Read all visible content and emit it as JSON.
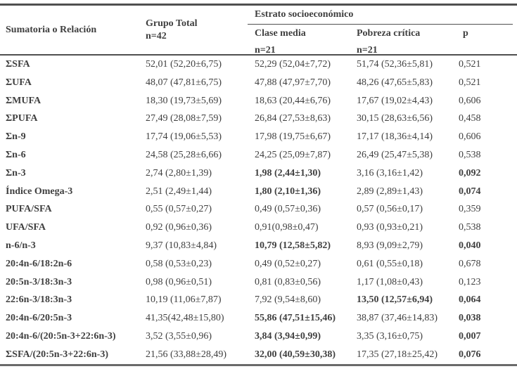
{
  "colors": {
    "background": "#ffffff",
    "text": "#3f3f3f",
    "border_heavy": "#4f4f4f",
    "border_light": "#6a6a6a"
  },
  "header": {
    "col1": "Sumatoria o Relación",
    "grupo_total_line1": "Grupo Total",
    "grupo_total_line2": "n=42",
    "estrato_span": "Estrato socioeconómico",
    "clase_media_line1": "Clase media",
    "clase_media_line2": "n=21",
    "pobreza_line1": "Pobreza crítica",
    "pobreza_line2": "n=21",
    "p": "p"
  },
  "rows": [
    {
      "label": "ΣSFA",
      "grupo_total": "52,01 (52,20±6,75)",
      "clase_media": "52,29 (52,04±7,72)",
      "pobreza_critica": "51,74 (52,36±5,81)",
      "p": "0,521",
      "bold_clase_media": false,
      "bold_pobreza": false,
      "bold_p": false
    },
    {
      "label": "ΣUFA",
      "grupo_total": "48,07 (47,81±6,75)",
      "clase_media": "47,88 (47,97±7,70)",
      "pobreza_critica": "48,26 (47,65±5,83)",
      "p": "0,521",
      "bold_clase_media": false,
      "bold_pobreza": false,
      "bold_p": false
    },
    {
      "label": "ΣMUFA",
      "grupo_total": "18,30 (19,73±5,69)",
      "clase_media": "18,63 (20,44±6,76)",
      "pobreza_critica": "17,67 (19,02±4,43)",
      "p": "0,606",
      "bold_clase_media": false,
      "bold_pobreza": false,
      "bold_p": false
    },
    {
      "label": "ΣPUFA",
      "grupo_total": "27,49 (28,08±7,59)",
      "clase_media": "26,84 (27,53±8,63)",
      "pobreza_critica": "30,15 (28,63±6,56)",
      "p": "0,458",
      "bold_clase_media": false,
      "bold_pobreza": false,
      "bold_p": false
    },
    {
      "label": "Σn-9",
      "grupo_total": "17,74 (19,06±5,53)",
      "clase_media": "17,98 (19,75±6,67)",
      "pobreza_critica": "17,17 (18,36±4,14)",
      "p": "0,606",
      "bold_clase_media": false,
      "bold_pobreza": false,
      "bold_p": false
    },
    {
      "label": "Σn-6",
      "grupo_total": "24,58 (25,28±6,66)",
      "clase_media": "24,25 (25,09±7,87)",
      "pobreza_critica": "26,49 (25,47±5,38)",
      "p": "0,538",
      "bold_clase_media": false,
      "bold_pobreza": false,
      "bold_p": false
    },
    {
      "label": "Σn-3",
      "grupo_total": "2,74 (2,80±1,39)",
      "clase_media": "1,98 (2,44±1,30)",
      "pobreza_critica": "3,16 (3,16±1,42)",
      "p": "0,092",
      "bold_clase_media": true,
      "bold_pobreza": false,
      "bold_p": true
    },
    {
      "label": "Índice Omega-3",
      "grupo_total": "2,51 (2,49±1,44)",
      "clase_media": "1,80 (2,10±1,36)",
      "pobreza_critica": "2,89 (2,89±1,43)",
      "p": "0,074",
      "bold_clase_media": true,
      "bold_pobreza": false,
      "bold_p": true
    },
    {
      "label": "PUFA/SFA",
      "grupo_total": "0,55 (0,57±0,27)",
      "clase_media": "0,49 (0,57±0,36)",
      "pobreza_critica": "0,57 (0,56±0,17)",
      "p": "0,359",
      "bold_clase_media": false,
      "bold_pobreza": false,
      "bold_p": false
    },
    {
      "label": "UFA/SFA",
      "grupo_total": "0,92 (0,96±0,36)",
      "clase_media": "0,91(0,98±0,47)",
      "pobreza_critica": "0,93 (0,93±0,21)",
      "p": "0,538",
      "bold_clase_media": false,
      "bold_pobreza": false,
      "bold_p": false
    },
    {
      "label": "n-6/n-3",
      "grupo_total": "9,37 (10,83±4,84)",
      "clase_media": "10,79 (12,58±5,82)",
      "pobreza_critica": "8,93 (9,09±2,79)",
      "p": "0,040",
      "bold_clase_media": true,
      "bold_pobreza": false,
      "bold_p": true
    },
    {
      "label": "20:4n-6/18:2n-6",
      "grupo_total": "0,58 (0,53±0,23)",
      "clase_media": "0,49 (0,52±0,27)",
      "pobreza_critica": "0,61 (0,55±0,18)",
      "p": "0,678",
      "bold_clase_media": false,
      "bold_pobreza": false,
      "bold_p": false
    },
    {
      "label": "20:5n-3/18:3n-3",
      "grupo_total": "0,98 (0,96±0,51)",
      "clase_media": "0,81 (0,83±0,56)",
      "pobreza_critica": "1,17 (1,08±0,43)",
      "p": "0,123",
      "bold_clase_media": false,
      "bold_pobreza": false,
      "bold_p": false
    },
    {
      "label": "22:6n-3/18:3n-3",
      "grupo_total": "10,19 (11,06±7,87)",
      "clase_media": "7,92 (9,54±8,60)",
      "pobreza_critica": "13,50 (12,57±6,94)",
      "p": "0,064",
      "bold_clase_media": false,
      "bold_pobreza": true,
      "bold_p": true
    },
    {
      "label": "20:4n-6/20:5n-3",
      "grupo_total": "41,35(42,48±15,80)",
      "clase_media": "55,86 (47,51±15,46)",
      "pobreza_critica": "38,87 (37,46±14,83)",
      "p": "0,038",
      "bold_clase_media": true,
      "bold_pobreza": false,
      "bold_p": true
    },
    {
      "label": "20:4n-6/(20:5n-3+22:6n-3)",
      "grupo_total": "3,52 (3,55±0,96)",
      "clase_media": "3,84 (3,94±0,99)",
      "pobreza_critica": "3,35 (3,16±0,75)",
      "p": "0,007",
      "bold_clase_media": true,
      "bold_pobreza": false,
      "bold_p": true
    },
    {
      "label": "ΣSFA/(20:5n-3+22:6n-3)",
      "grupo_total": "21,56 (33,88±28,49)",
      "clase_media": "32,00 (40,59±30,38)",
      "pobreza_critica": "17,35 (27,18±25,42)",
      "p": "0,076",
      "bold_clase_media": true,
      "bold_pobreza": false,
      "bold_p": true
    }
  ]
}
